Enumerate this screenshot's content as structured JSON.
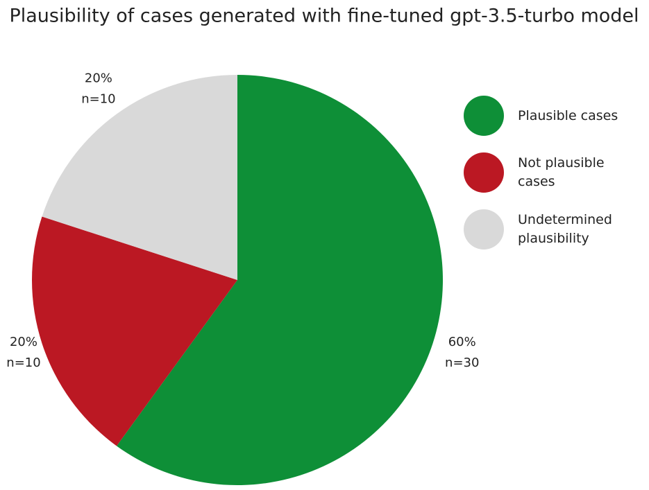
{
  "chart_data": {
    "type": "pie",
    "title": "Plausibility of cases generated with fine-tuned gpt-3.5-turbo model",
    "categories": [
      "Plausible cases",
      "Not plausible cases",
      "Undetermined plausibility"
    ],
    "values": [
      60,
      20,
      20
    ],
    "value_labels": [
      "60%",
      "20%",
      "20%"
    ],
    "counts": [
      30,
      10,
      10
    ],
    "count_labels": [
      "n=30",
      "n=10",
      "n=10"
    ],
    "colors": [
      "#0e8f37",
      "#bb1823",
      "#d9d9d9"
    ]
  }
}
